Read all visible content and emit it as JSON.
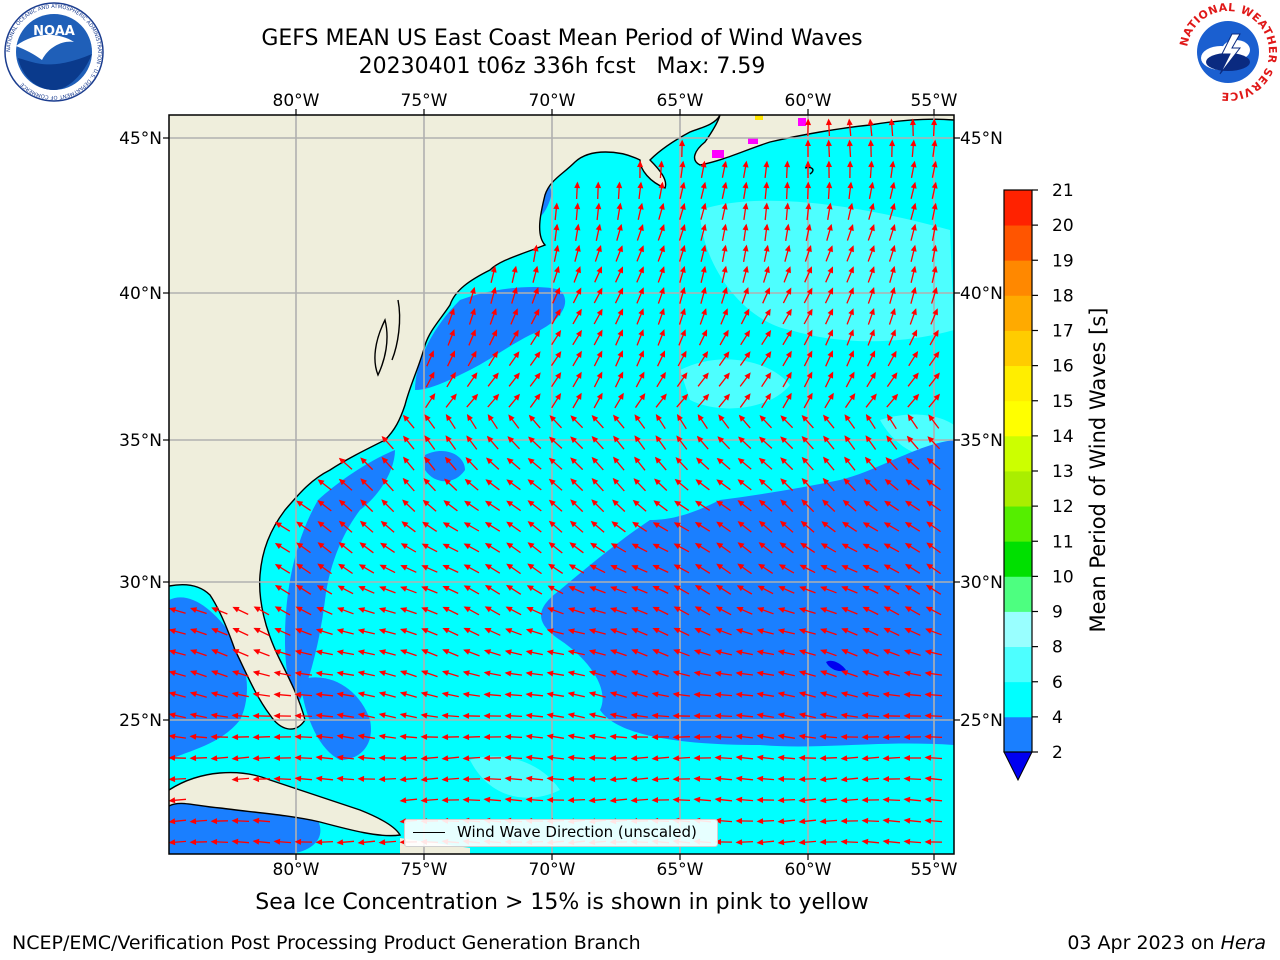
{
  "title": {
    "line1": "GEFS MEAN US East Coast Mean Period of Wind Waves",
    "line2": "20230401 t06z 336h fcst   Max: 7.59"
  },
  "map": {
    "lon_labels": [
      "80°W",
      "75°W",
      "70°W",
      "65°W",
      "60°W",
      "55°W"
    ],
    "lat_labels": [
      "45°N",
      "40°N",
      "35°N",
      "30°N",
      "25°N"
    ],
    "colors": {
      "land": "#efeedc",
      "ocean_4_6": "#00ffff",
      "ocean_6_8": "#4dffff",
      "ocean_2_4": "#1a7fff",
      "ocean_lt2": "#0000f0",
      "sea_ice": "#ff00ff",
      "arrows": "#ff0000",
      "grid": "#b0b0b0"
    },
    "legend_label": "Wind Wave Direction (unscaled)"
  },
  "colorbar": {
    "label": "Mean Period of Wind Waves [s]",
    "ticks": [
      "2",
      "4",
      "6",
      "8",
      "9",
      "10",
      "11",
      "12",
      "13",
      "14",
      "15",
      "16",
      "17",
      "18",
      "19",
      "20",
      "21"
    ],
    "colors": [
      "#1a7fff",
      "#00ffff",
      "#4dffff",
      "#99ffff",
      "#4dff80",
      "#00e000",
      "#55ee00",
      "#aaee00",
      "#ccff00",
      "#ffff00",
      "#ffee00",
      "#ffcc00",
      "#ffaa00",
      "#ff8800",
      "#ff5500",
      "#ff2200",
      "#ff0000"
    ],
    "under_color": "#0000f0"
  },
  "note": "Sea Ice Concentration > 15% is shown in pink to yellow",
  "footer": {
    "left": "NCEP/EMC/Verification Post Processing Product Generation Branch",
    "right_date": "03 Apr 2023 on",
    "right_host": "Hera"
  },
  "logos": {
    "noaa_text": "NOAA",
    "noaa_ring_text": "NATIONAL OCEANIC AND ATMOSPHERIC ADMINISTRATION · U.S. DEPARTMENT OF COMMERCE",
    "nws_ring_text": "NATIONAL WEATHER SERVICE"
  }
}
